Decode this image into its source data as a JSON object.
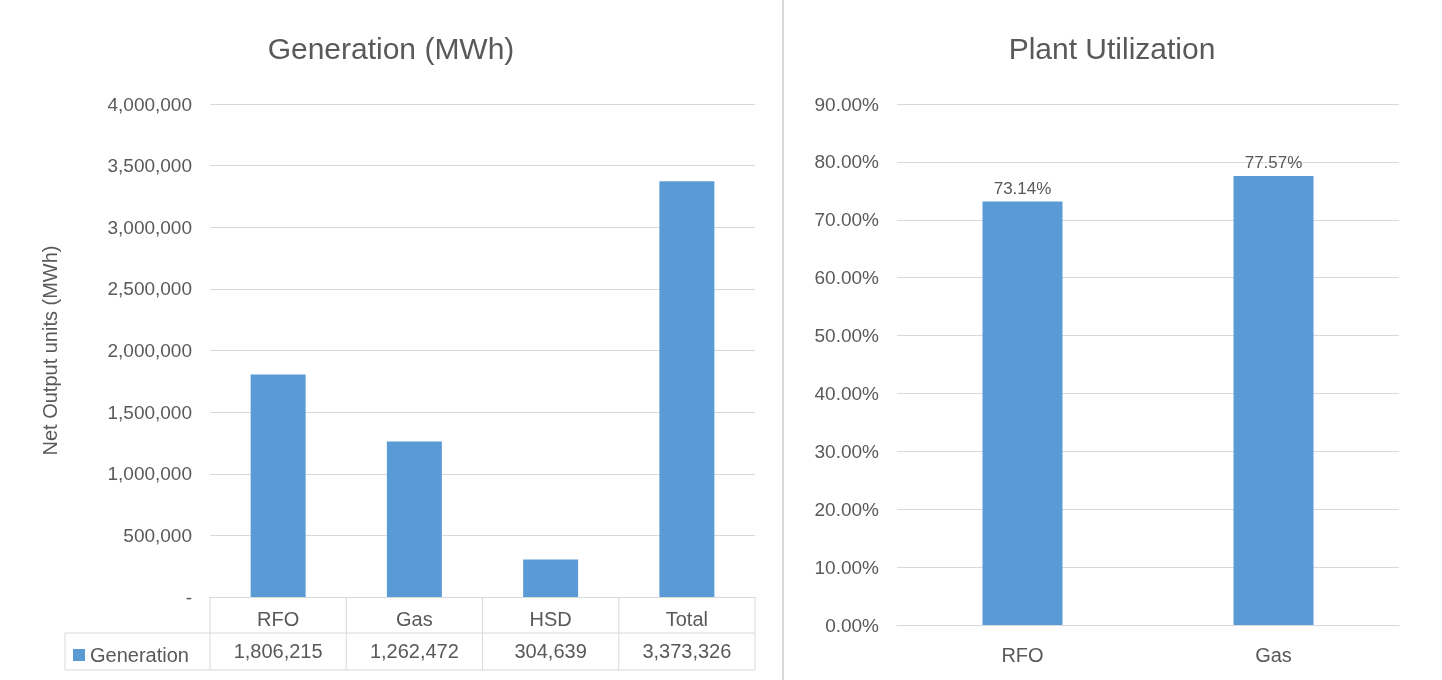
{
  "chart_data": [
    {
      "type": "bar",
      "title": "Generation (MWh)",
      "ylabel": "Net Output units (MWh)",
      "categories": [
        "RFO",
        "Gas",
        "HSD",
        "Total"
      ],
      "series": [
        {
          "name": "Generation",
          "color": "#5b9bd5",
          "values": [
            1806215,
            1262472,
            304639,
            3373326
          ],
          "value_labels": [
            "1,806,215",
            "1,262,472",
            "304,639",
            "3,373,326"
          ]
        }
      ],
      "ylim": [
        0,
        4000000
      ],
      "yticks": [
        {
          "value": 0,
          "label": "-"
        },
        {
          "value": 500000,
          "label": "500,000"
        },
        {
          "value": 1000000,
          "label": "1,000,000"
        },
        {
          "value": 1500000,
          "label": "1,500,000"
        },
        {
          "value": 2000000,
          "label": "2,000,000"
        },
        {
          "value": 2500000,
          "label": "2,500,000"
        },
        {
          "value": 3000000,
          "label": "3,000,000"
        },
        {
          "value": 3500000,
          "label": "3,500,000"
        },
        {
          "value": 4000000,
          "label": "4,000,000"
        }
      ],
      "grid": "y",
      "legend": "bottom left"
    },
    {
      "type": "bar",
      "title": "Plant Utilization",
      "categories": [
        "RFO",
        "Gas"
      ],
      "series": [
        {
          "color": "#5b9bd5",
          "values": [
            73.14,
            77.57
          ],
          "value_labels": [
            "73.14%",
            "77.57%"
          ]
        }
      ],
      "ylim": [
        0,
        90
      ],
      "yticks": [
        {
          "value": 0,
          "label": "0.00%"
        },
        {
          "value": 10,
          "label": "10.00%"
        },
        {
          "value": 20,
          "label": "20.00%"
        },
        {
          "value": 30,
          "label": "30.00%"
        },
        {
          "value": 40,
          "label": "40.00%"
        },
        {
          "value": 50,
          "label": "50.00%"
        },
        {
          "value": 60,
          "label": "60.00%"
        },
        {
          "value": 70,
          "label": "70.00%"
        },
        {
          "value": 80,
          "label": "80.00%"
        },
        {
          "value": 90,
          "label": "90.00%"
        }
      ],
      "grid": "y"
    }
  ]
}
